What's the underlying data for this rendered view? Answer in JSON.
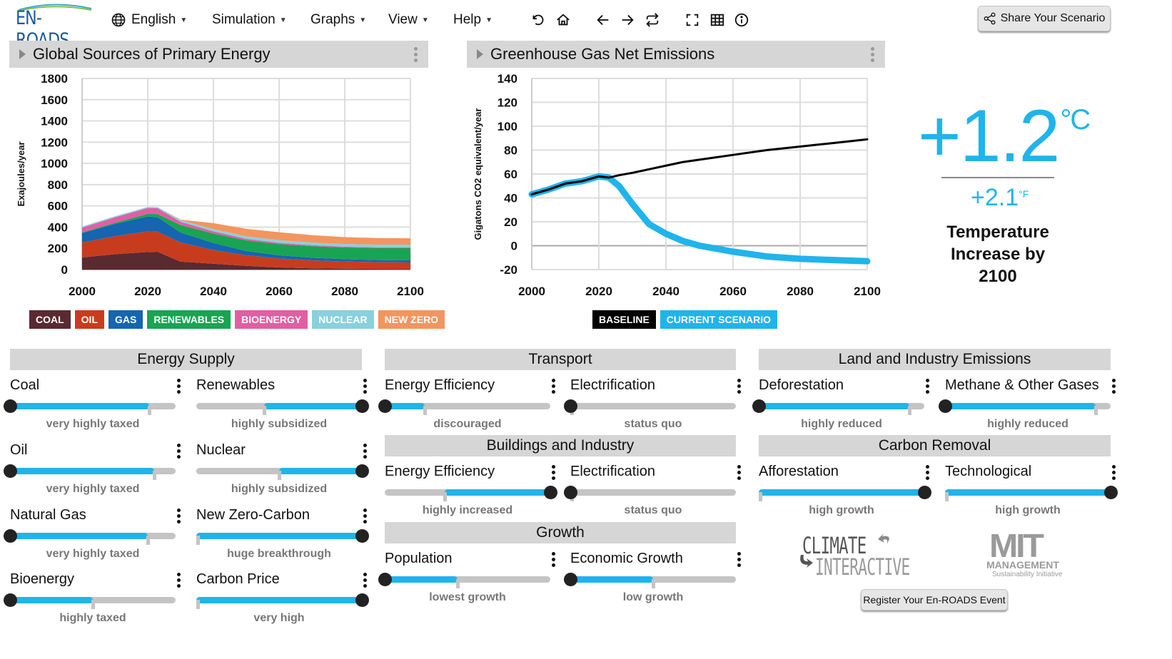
{
  "app": {
    "logo_text": "EN-ROADS"
  },
  "menu": [
    {
      "label": "English",
      "icon": "globe-icon"
    },
    {
      "label": "Simulation"
    },
    {
      "label": "Graphs"
    },
    {
      "label": "View"
    },
    {
      "label": "Help"
    }
  ],
  "toolbar": {
    "icons": [
      "undo-icon",
      "home-icon",
      "back-arrow-icon",
      "forward-arrow-icon",
      "compare-icon",
      "fullscreen-icon",
      "table-icon",
      "info-icon"
    ],
    "share_label": "Share Your Scenario"
  },
  "graph1": {
    "title": "Global Sources of Primary Energy",
    "legend": [
      {
        "label": "COAL",
        "color": "#5a2a31"
      },
      {
        "label": "OIL",
        "color": "#c83c1e"
      },
      {
        "label": "GAS",
        "color": "#1565b0"
      },
      {
        "label": "RENEWABLES",
        "color": "#19a453"
      },
      {
        "label": "BIOENERGY",
        "color": "#e05fa3"
      },
      {
        "label": "NUCLEAR",
        "color": "#88d1dd"
      },
      {
        "label": "NEW ZERO",
        "color": "#f3955e"
      }
    ]
  },
  "graph2": {
    "title": "Greenhouse Gas Net Emissions",
    "legend": [
      {
        "label": "BASELINE",
        "color": "#000000"
      },
      {
        "label": "CURRENT SCENARIO",
        "color": "#20b4ea"
      }
    ]
  },
  "chart_data": [
    {
      "type": "area",
      "stacked": true,
      "title": "Global Sources of Primary Energy",
      "xlabel": "",
      "ylabel": "Exajoules/year",
      "xlim": [
        2000,
        2100
      ],
      "ylim": [
        0,
        1800
      ],
      "xticks": [
        2000,
        2020,
        2040,
        2060,
        2080,
        2100
      ],
      "yticks": [
        0,
        200,
        400,
        600,
        800,
        1000,
        1200,
        1400,
        1600,
        1800
      ],
      "grid": true,
      "legend_position": "bottom",
      "x": [
        2000,
        2010,
        2020,
        2023,
        2030,
        2040,
        2050,
        2060,
        2070,
        2080,
        2090,
        2100
      ],
      "series": [
        {
          "name": "Coal",
          "color": "#5a2a31",
          "values": [
            115,
            145,
            165,
            168,
            75,
            55,
            35,
            20,
            12,
            8,
            6,
            5
          ]
        },
        {
          "name": "Oil",
          "color": "#c83c1e",
          "values": [
            140,
            170,
            195,
            190,
            180,
            130,
            100,
            85,
            75,
            68,
            64,
            62
          ]
        },
        {
          "name": "Gas",
          "color": "#1565b0",
          "values": [
            90,
            115,
            140,
            135,
            95,
            65,
            40,
            30,
            25,
            22,
            20,
            20
          ]
        },
        {
          "name": "Renewables",
          "color": "#19a453",
          "values": [
            5,
            12,
            25,
            30,
            70,
            90,
            100,
            105,
            108,
            110,
            112,
            115
          ]
        },
        {
          "name": "Bioenergy",
          "color": "#e05fa3",
          "values": [
            45,
            50,
            55,
            55,
            30,
            20,
            15,
            12,
            10,
            8,
            8,
            8
          ]
        },
        {
          "name": "Nuclear",
          "color": "#88d1dd",
          "values": [
            10,
            10,
            10,
            10,
            15,
            22,
            24,
            25,
            25,
            25,
            25,
            25
          ]
        },
        {
          "name": "New Zero-Carbon",
          "color": "#f3955e",
          "values": [
            0,
            0,
            0,
            0,
            5,
            55,
            70,
            75,
            70,
            65,
            62,
            60
          ]
        }
      ]
    },
    {
      "type": "line",
      "title": "Greenhouse Gas Net Emissions",
      "xlabel": "",
      "ylabel": "Gigatons CO2 equivalent/year",
      "xlim": [
        2000,
        2100
      ],
      "ylim": [
        -20,
        140
      ],
      "xticks": [
        2000,
        2020,
        2040,
        2060,
        2080,
        2100
      ],
      "yticks": [
        -20,
        0,
        20,
        40,
        60,
        80,
        100,
        120,
        140
      ],
      "grid": true,
      "legend_position": "bottom",
      "x": [
        2000,
        2005,
        2010,
        2015,
        2020,
        2023,
        2026,
        2030,
        2035,
        2040,
        2045,
        2050,
        2060,
        2070,
        2080,
        2090,
        2100
      ],
      "series": [
        {
          "name": "Baseline",
          "color": "#000000",
          "values": [
            43,
            47,
            52,
            54,
            58,
            57,
            59,
            61,
            64,
            67,
            70,
            72,
            76,
            80,
            83,
            86,
            89
          ]
        },
        {
          "name": "Current Scenario",
          "color": "#20b4ea",
          "values": [
            43,
            47,
            52,
            54,
            58,
            57,
            50,
            35,
            18,
            10,
            4,
            0,
            -5,
            -9,
            -11,
            -12,
            -13
          ]
        }
      ]
    }
  ],
  "temperature": {
    "celsius": "+1.2",
    "celsius_unit": "°C",
    "fahrenheit": "+2.1",
    "fahrenheit_unit": "°F",
    "label": "Temperature Increase by 2100"
  },
  "sections": {
    "energy_supply": "Energy Supply",
    "transport": "Transport",
    "buildings": "Buildings and Industry",
    "growth": "Growth",
    "land": "Land and Industry Emissions",
    "carbon_removal": "Carbon Removal"
  },
  "sliders": {
    "coal": {
      "label": "Coal",
      "status": "very highly taxed",
      "value": 0,
      "baseline": 0.84
    },
    "renewables": {
      "label": "Renewables",
      "status": "highly subsidized",
      "value": 1,
      "baseline": 0.41
    },
    "oil": {
      "label": "Oil",
      "status": "very highly taxed",
      "value": 0,
      "baseline": 0.87
    },
    "nuclear": {
      "label": "Nuclear",
      "status": "highly subsidized",
      "value": 1,
      "baseline": 0.5
    },
    "natural_gas": {
      "label": "Natural Gas",
      "status": "very highly taxed",
      "value": 0,
      "baseline": 0.83
    },
    "new_zero_carbon": {
      "label": "New Zero-Carbon",
      "status": "huge breakthrough",
      "value": 1,
      "baseline": 0
    },
    "bioenergy": {
      "label": "Bioenergy",
      "status": "highly taxed",
      "value": 0,
      "baseline": 0.5
    },
    "carbon_price": {
      "label": "Carbon Price",
      "status": "very high",
      "value": 1,
      "baseline": 0
    },
    "transport_efficiency": {
      "label": "Energy Efficiency",
      "status": "discouraged",
      "value": 0,
      "baseline": 0.24
    },
    "transport_electrification": {
      "label": "Electrification",
      "status": "status quo",
      "value": 0,
      "baseline": 0
    },
    "buildings_efficiency": {
      "label": "Energy Efficiency",
      "status": "highly increased",
      "value": 1,
      "baseline": 0.36
    },
    "buildings_electrification": {
      "label": "Electrification",
      "status": "status quo",
      "value": 0,
      "baseline": 0
    },
    "population": {
      "label": "Population",
      "status": "lowest growth",
      "value": 0,
      "baseline": 0.44
    },
    "economic_growth": {
      "label": "Economic Growth",
      "status": "low growth",
      "value": 0,
      "baseline": 0.5
    },
    "deforestation": {
      "label": "Deforestation",
      "status": "highly reduced",
      "value": 0,
      "baseline": 0.91
    },
    "methane": {
      "label": "Methane & Other Gases",
      "status": "highly reduced",
      "value": 0,
      "baseline": 0.91
    },
    "afforestation": {
      "label": "Afforestation",
      "status": "high growth",
      "value": 1,
      "baseline": 0
    },
    "technological": {
      "label": "Technological",
      "status": "high growth",
      "value": 1,
      "baseline": 0
    }
  },
  "footer": {
    "climate_interactive_top": "CLIMATE",
    "climate_interactive_bottom": "INTERACTIVE",
    "mit_top": "MIT",
    "mit_mid": "MANAGEMENT",
    "mit_bottom": "Sustainability Initiative",
    "register_label": "Register Your En-ROADS Event"
  }
}
